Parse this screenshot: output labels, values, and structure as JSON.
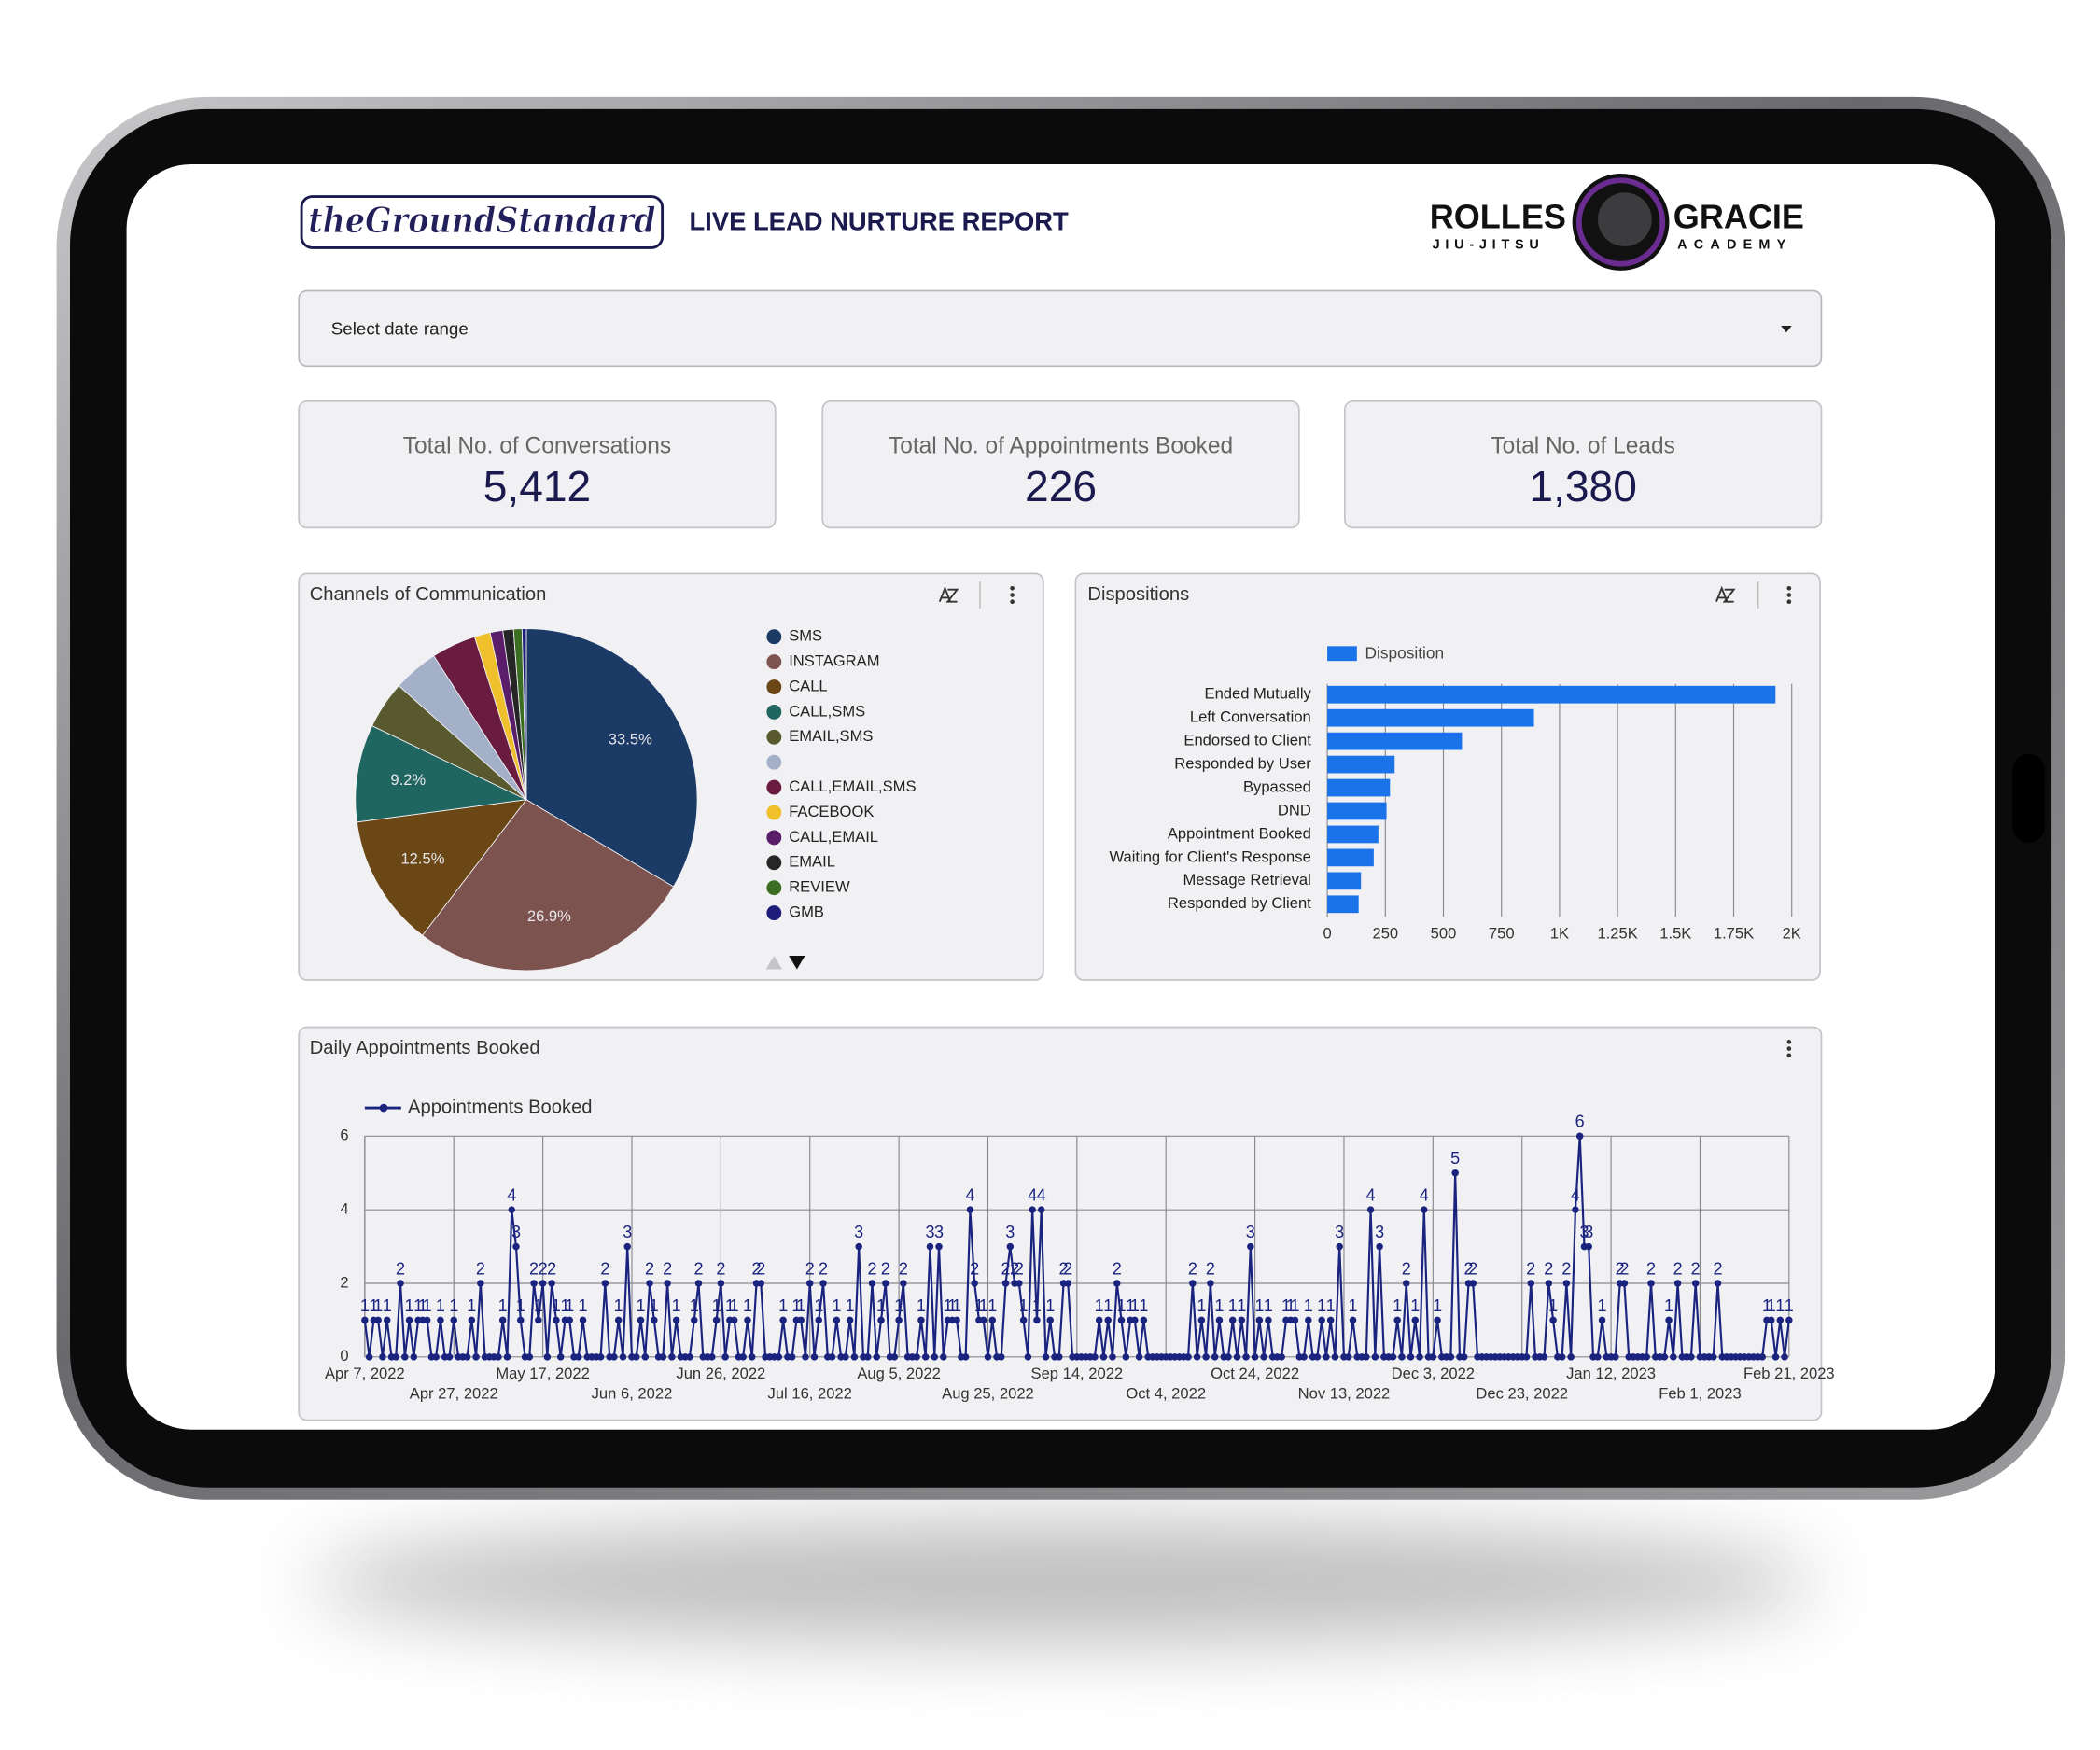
{
  "header": {
    "brand_logo": "theGroundStandard",
    "title": "LIVE LEAD NURTURE REPORT",
    "partner_logo_left": "ROLLES",
    "partner_logo_left_sub": "JIU-JITSU",
    "partner_logo_right": "GRACIE",
    "partner_logo_right_sub": "ACADEMY"
  },
  "date_range": {
    "label": "Select date range"
  },
  "kpis": [
    {
      "label": "Total No. of Conversations",
      "value": "5,412"
    },
    {
      "label": "Total No. of Appointments Booked",
      "value": "226"
    },
    {
      "label": "Total No. of Leads",
      "value": "1,380"
    }
  ],
  "chart_data": [
    {
      "type": "pie",
      "title": "Channels of Communication",
      "categories": [
        "SMS",
        "INSTAGRAM",
        "CALL",
        "CALL,SMS",
        "EMAIL,SMS",
        null,
        "CALL,EMAIL,SMS",
        "FACEBOOK",
        "CALL,EMAIL",
        "EMAIL",
        "REVIEW",
        "GMB"
      ],
      "values": [
        33.5,
        26.9,
        12.5,
        9.2,
        4.5,
        4.3,
        4.2,
        1.5,
        1.2,
        1.0,
        0.8,
        0.4
      ],
      "value_labels": [
        "33.5%",
        "26.9%",
        "12.5%",
        "9.2%",
        null,
        null,
        null,
        null,
        null,
        null,
        null,
        null
      ],
      "colors": [
        "#1b3a66",
        "#7d5350",
        "#6b4716",
        "#1f6661",
        "#58592f",
        "#a3b0c8",
        "#6a1b40",
        "#f0bf2c",
        "#5a1d6a",
        "#262626",
        "#3b6e23",
        "#1e1e7a"
      ]
    },
    {
      "type": "bar",
      "orientation": "horizontal",
      "title": "Dispositions",
      "categories": [
        "Ended Mutually",
        "Left Conversation",
        "Endorsed to Client",
        "Responded by User",
        "Bypassed",
        "DND",
        "Appointment Booked",
        "Waiting for Client's Response",
        "Message Retrieval",
        "Responded by Client"
      ],
      "series": [
        {
          "name": "Disposition",
          "color": "#1a73e8",
          "values": [
            1930,
            890,
            580,
            290,
            270,
            255,
            220,
            200,
            145,
            135
          ]
        }
      ],
      "xlim": [
        0,
        2000
      ],
      "xticks": [
        0,
        250,
        500,
        750,
        {
          "value": 1000,
          "label": "1K"
        },
        {
          "value": 1250,
          "label": "1.25K"
        },
        {
          "value": 1500,
          "label": "1.5K"
        },
        {
          "value": 1750,
          "label": "1.75K"
        },
        {
          "value": 2000,
          "label": "2K"
        }
      ],
      "grid": true
    },
    {
      "type": "line",
      "title": "Daily Appointments Booked",
      "categories": [
        "Apr 7, 2022",
        null,
        null,
        null,
        null,
        null,
        null,
        null,
        null,
        null,
        null,
        null,
        null,
        null,
        null,
        null,
        null,
        null,
        null,
        null,
        "Apr 27, 2022",
        null,
        null,
        null,
        null,
        null,
        null,
        null,
        null,
        null,
        null,
        null,
        null,
        null,
        null,
        null,
        null,
        null,
        null,
        null,
        "May 17, 2022",
        null,
        null,
        null,
        null,
        null,
        null,
        null,
        null,
        null,
        null,
        null,
        null,
        null,
        null,
        null,
        null,
        null,
        null,
        null,
        "Jun 6, 2022",
        null,
        null,
        null,
        null,
        null,
        null,
        null,
        null,
        null,
        null,
        null,
        null,
        null,
        null,
        null,
        null,
        null,
        null,
        null,
        "Jun 26, 2022",
        null,
        null,
        null,
        null,
        null,
        null,
        null,
        null,
        null,
        null,
        null,
        null,
        null,
        null,
        null,
        null,
        null,
        null,
        null,
        "Jul 16, 2022",
        null,
        null,
        null,
        null,
        null,
        null,
        null,
        null,
        null,
        null,
        null,
        null,
        null,
        null,
        null,
        null,
        null,
        null,
        null,
        "Aug 5, 2022",
        null,
        null,
        null,
        null,
        null,
        null,
        null,
        null,
        null,
        null,
        null,
        null,
        null,
        null,
        null,
        null,
        null,
        null,
        null,
        "Aug 25, 2022",
        null,
        null,
        null,
        null,
        null,
        null,
        null,
        null,
        null,
        null,
        null,
        null,
        null,
        null,
        null,
        null,
        null,
        null,
        null,
        "Sep 14, 2022",
        null,
        null,
        null,
        null,
        null,
        null,
        null,
        null,
        null,
        null,
        null,
        null,
        null,
        null,
        null,
        null,
        null,
        null,
        null,
        "Oct 4, 2022",
        null,
        null,
        null,
        null,
        null,
        null,
        null,
        null,
        null,
        null,
        null,
        null,
        null,
        null,
        null,
        null,
        null,
        null,
        null,
        "Oct 24, 2022",
        null,
        null,
        null,
        null,
        null,
        null,
        null,
        null,
        null,
        null,
        null,
        null,
        null,
        null,
        null,
        null,
        null,
        null,
        null,
        "Nov 13, 2022",
        null,
        null,
        null,
        null,
        null,
        null,
        null,
        null,
        null,
        null,
        null,
        null,
        null,
        null,
        null,
        null,
        null,
        null,
        null,
        "Dec 3, 2022",
        null,
        null,
        null,
        null,
        null,
        null,
        null,
        null,
        null,
        null,
        null,
        null,
        null,
        null,
        null,
        null,
        null,
        null,
        null,
        "Dec 23, 2022",
        null,
        null,
        null,
        null,
        null,
        null,
        null,
        null,
        null,
        null,
        null,
        null,
        null,
        null,
        null,
        null,
        null,
        null,
        null,
        "Jan 12, 2023",
        null,
        null,
        null,
        null,
        null,
        null,
        null,
        null,
        null,
        null,
        null,
        null,
        null,
        null,
        null,
        null,
        null,
        null,
        null,
        "Feb 1, 2023",
        null,
        null,
        null,
        null,
        null,
        null,
        null,
        null,
        null,
        null,
        null,
        null,
        null,
        null,
        null,
        null,
        null,
        null,
        null,
        "Feb 21, 2023"
      ],
      "series": [
        {
          "name": "Appointments Booked",
          "color": "#1a237e",
          "values": [
            1,
            0,
            1,
            1,
            0,
            1,
            0,
            0,
            2,
            0,
            1,
            0,
            1,
            1,
            1,
            0,
            0,
            1,
            0,
            0,
            1,
            0,
            0,
            0,
            1,
            0,
            2,
            0,
            0,
            0,
            0,
            1,
            0,
            4,
            3,
            1,
            0,
            0,
            2,
            1,
            2,
            0,
            2,
            1,
            0,
            1,
            1,
            0,
            0,
            1,
            0,
            0,
            0,
            0,
            2,
            0,
            0,
            1,
            0,
            3,
            0,
            0,
            1,
            0,
            2,
            1,
            0,
            0,
            2,
            0,
            1,
            0,
            0,
            0,
            1,
            2,
            0,
            0,
            0,
            1,
            2,
            0,
            1,
            1,
            0,
            0,
            1,
            0,
            2,
            2,
            0,
            0,
            0,
            0,
            1,
            0,
            0,
            1,
            1,
            0,
            2,
            0,
            1,
            2,
            0,
            0,
            1,
            0,
            0,
            1,
            0,
            3,
            0,
            0,
            2,
            0,
            1,
            2,
            0,
            0,
            1,
            2,
            0,
            0,
            0,
            1,
            0,
            3,
            0,
            3,
            0,
            1,
            1,
            1,
            0,
            0,
            4,
            2,
            1,
            1,
            0,
            1,
            0,
            0,
            2,
            3,
            2,
            2,
            1,
            0,
            4,
            1,
            4,
            0,
            1,
            0,
            0,
            2,
            2,
            0,
            0,
            0,
            0,
            0,
            0,
            1,
            0,
            1,
            0,
            2,
            1,
            0,
            1,
            1,
            0,
            1,
            0,
            0,
            0,
            0,
            0,
            0,
            0,
            0,
            0,
            0,
            2,
            0,
            1,
            0,
            2,
            0,
            1,
            0,
            0,
            1,
            0,
            1,
            0,
            3,
            0,
            1,
            0,
            1,
            0,
            0,
            0,
            1,
            1,
            1,
            0,
            0,
            1,
            0,
            0,
            1,
            0,
            1,
            0,
            3,
            0,
            0,
            1,
            0,
            0,
            0,
            4,
            0,
            3,
            0,
            0,
            0,
            1,
            0,
            2,
            0,
            1,
            0,
            4,
            0,
            0,
            1,
            0,
            0,
            0,
            5,
            0,
            0,
            2,
            2,
            0,
            0,
            0,
            0,
            0,
            0,
            0,
            0,
            0,
            0,
            0,
            0,
            2,
            0,
            0,
            0,
            2,
            1,
            0,
            0,
            2,
            0,
            4,
            6,
            3,
            3,
            0,
            0,
            1,
            0,
            0,
            0,
            2,
            2,
            0,
            0,
            0,
            0,
            0,
            2,
            0,
            0,
            0,
            1,
            0,
            2,
            0,
            0,
            0,
            2,
            0,
            0,
            0,
            0,
            2,
            0,
            0,
            0,
            0,
            0,
            0,
            0,
            0,
            0,
            0,
            1,
            1,
            0,
            1,
            0,
            1
          ]
        }
      ],
      "ylim": [
        0,
        6
      ],
      "yticks": [
        0,
        2,
        4,
        6
      ],
      "grid": true
    }
  ]
}
